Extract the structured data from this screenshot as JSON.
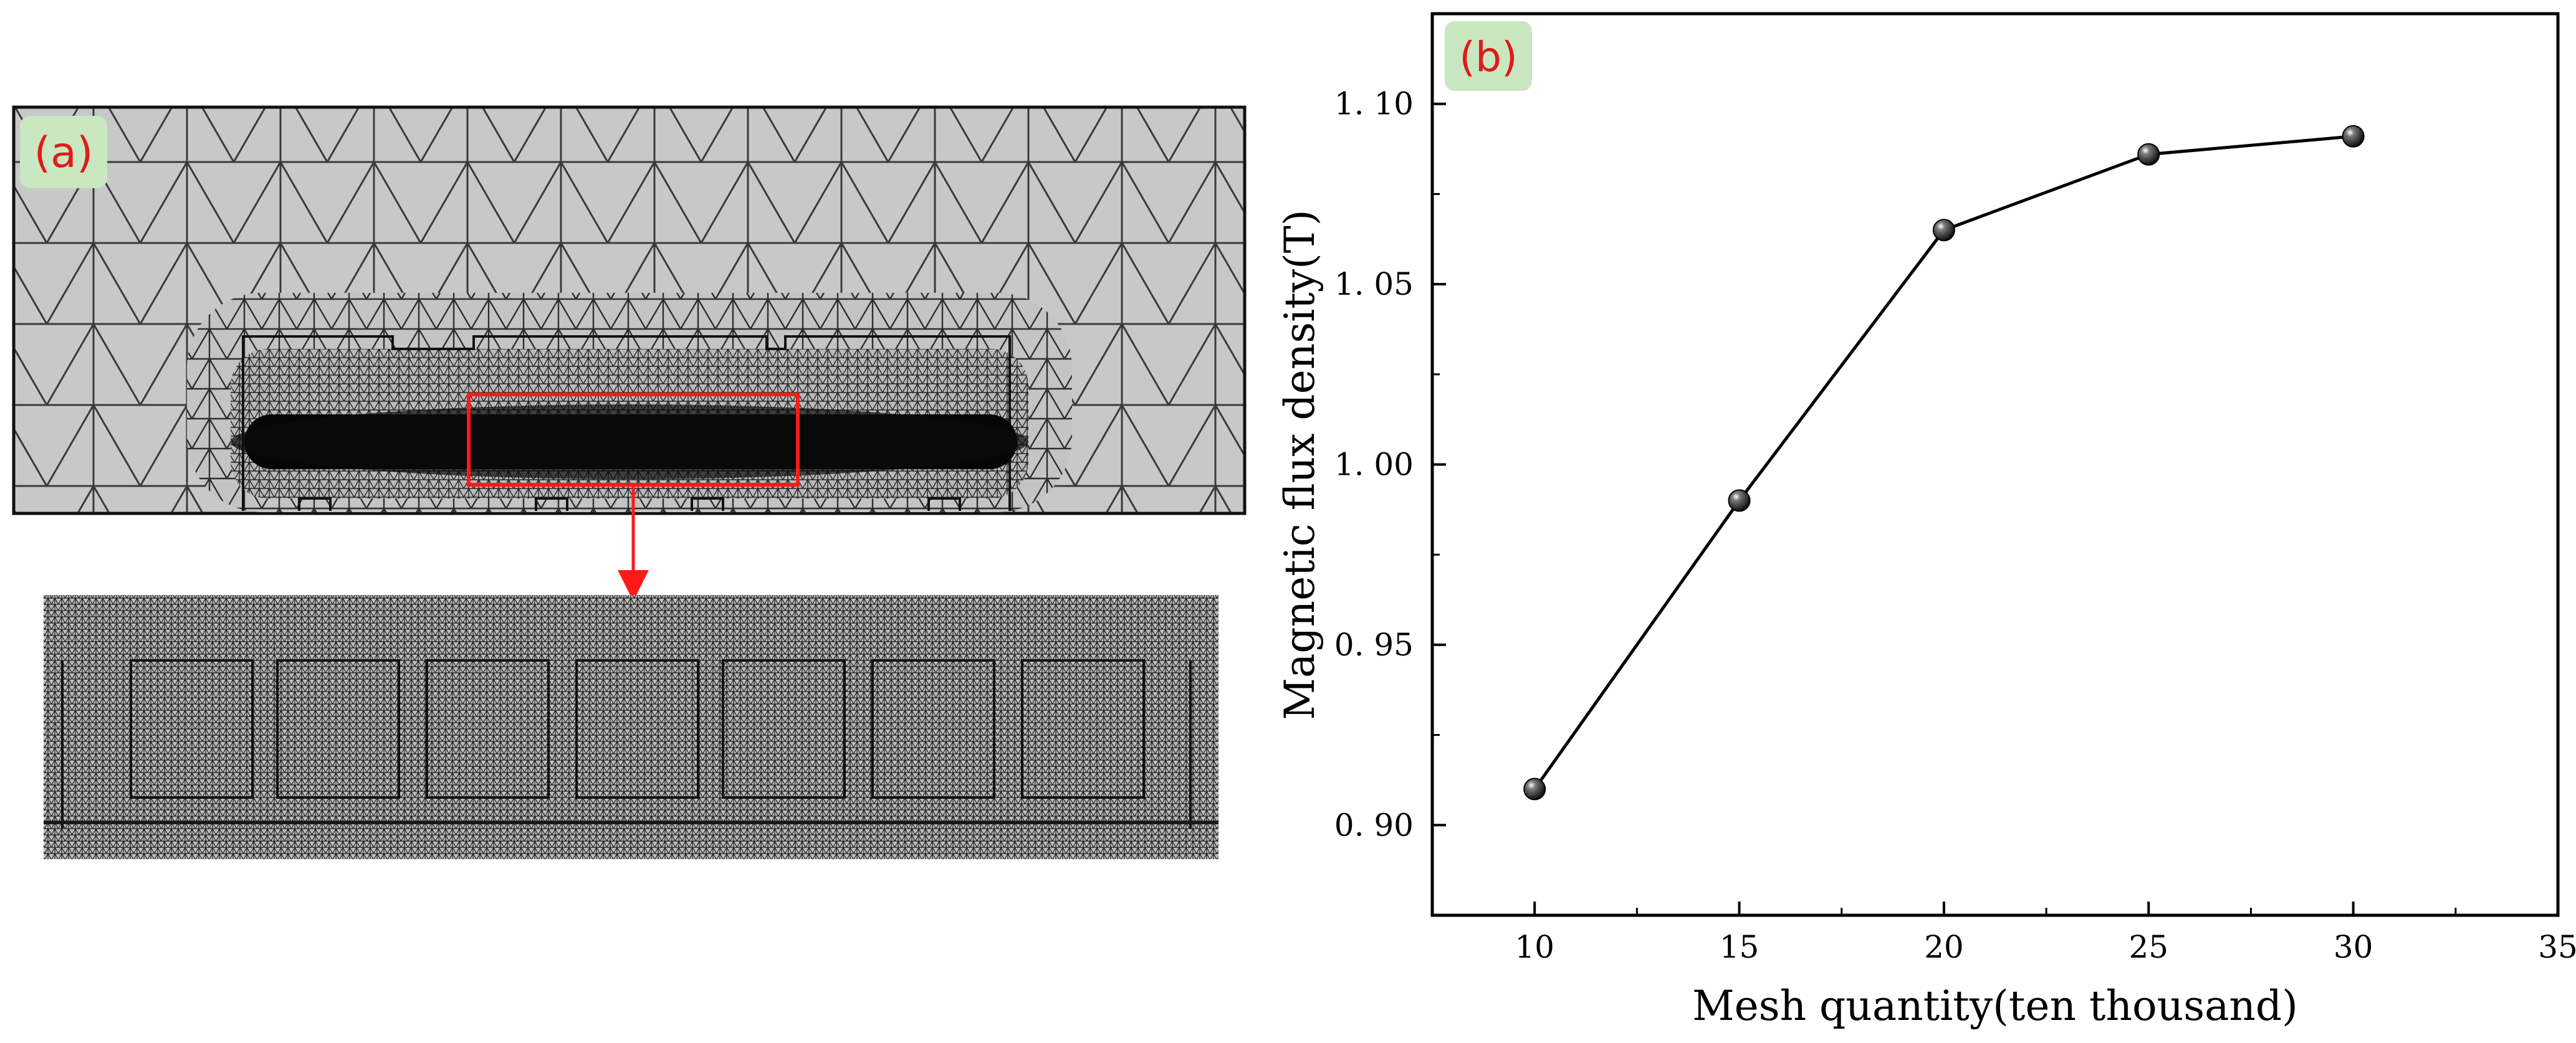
{
  "panels": {
    "a": {
      "label": "(a)",
      "description_colors": {
        "mesh_fill": "#c8c8c8",
        "mesh_line": "#3a3a3a",
        "highlight": "#ff1a1a",
        "label_bg": "#c9e7c0",
        "label_text": "#e11a1a"
      }
    },
    "b": {
      "label": "(b)"
    }
  },
  "chart_data": {
    "type": "line",
    "title": "",
    "xlabel": "Mesh quantity(ten thousand)",
    "ylabel": "Magnetic flux density(T)",
    "x": [
      10,
      15,
      20,
      25,
      30
    ],
    "series": [
      {
        "values": [
          0.91,
          0.99,
          1.065,
          1.086,
          1.091
        ]
      }
    ],
    "xlim": [
      7.5,
      35
    ],
    "ylim": [
      0.875,
      1.125
    ],
    "xticks": [
      10,
      15,
      20,
      25,
      30,
      35
    ],
    "yticks": [
      0.9,
      0.95,
      1.0,
      1.05,
      1.1
    ],
    "xtick_labels": [
      "10",
      "15",
      "20",
      "25",
      "30",
      "35"
    ],
    "ytick_labels": [
      "0. 90",
      "0. 95",
      "1. 00",
      "1. 05",
      "1. 10"
    ],
    "grid": false,
    "legend": "none",
    "colors": {
      "line": "#000000",
      "marker": "#000000"
    }
  }
}
